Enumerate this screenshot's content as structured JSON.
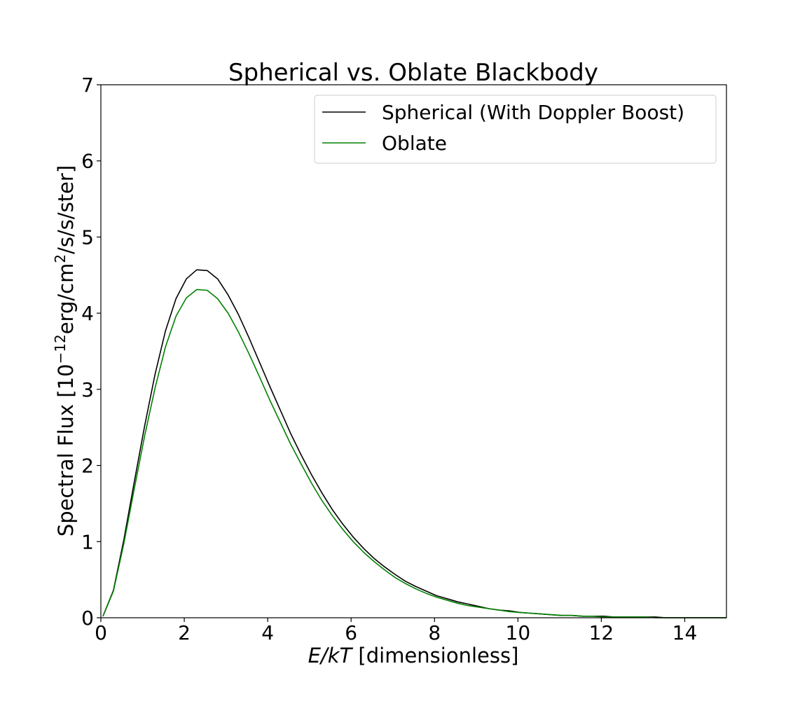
{
  "chart_data": {
    "type": "line",
    "title": "Spherical vs. Oblate Blackbody",
    "xlabel_italic": "E/kT",
    "xlabel_rest": " [dimensionless]",
    "ylabel_pre": "Spectral Flux [10",
    "ylabel_exp1": "−12",
    "ylabel_mid": "erg/cm",
    "ylabel_exp2": "2",
    "ylabel_post": "/s/s/ster]",
    "xlim": [
      0,
      15
    ],
    "ylim": [
      0,
      7
    ],
    "xticks": [
      0,
      2,
      4,
      6,
      8,
      10,
      12,
      14
    ],
    "xtick_labels": [
      "0",
      "2",
      "4",
      "6",
      "8",
      "10",
      "12",
      "14"
    ],
    "yticks": [
      0,
      1,
      2,
      3,
      4,
      5,
      6,
      7
    ],
    "ytick_labels": [
      "0",
      "1",
      "2",
      "3",
      "4",
      "5",
      "6",
      "7"
    ],
    "grid": false,
    "legend_position": "top-right",
    "x": [
      0.05,
      0.3,
      0.55,
      0.8,
      1.05,
      1.3,
      1.55,
      1.8,
      2.05,
      2.3,
      2.55,
      2.8,
      3.05,
      3.3,
      3.55,
      3.8,
      4.05,
      4.3,
      4.55,
      4.8,
      5.05,
      5.3,
      5.55,
      5.8,
      6.05,
      6.3,
      6.55,
      6.8,
      7.05,
      7.3,
      7.55,
      7.8,
      8.05,
      8.3,
      8.55,
      8.8,
      9.05,
      9.3,
      9.55,
      9.8,
      10.05,
      10.3,
      10.55,
      10.8,
      11.05,
      11.3,
      11.55,
      11.8,
      12.05,
      12.3,
      12.55,
      12.8,
      13.05,
      13.3,
      13.55,
      13.8,
      14.05,
      14.3,
      14.55,
      14.8,
      15.0
    ],
    "series": [
      {
        "name": "Spherical (With Doppler Boost)",
        "color": "#000000",
        "values": [
          0.02,
          0.36,
          1.02,
          1.78,
          2.52,
          3.2,
          3.77,
          4.19,
          4.45,
          4.57,
          4.56,
          4.45,
          4.24,
          3.98,
          3.68,
          3.36,
          3.04,
          2.73,
          2.42,
          2.14,
          1.88,
          1.64,
          1.42,
          1.23,
          1.06,
          0.91,
          0.78,
          0.67,
          0.57,
          0.48,
          0.41,
          0.35,
          0.29,
          0.25,
          0.21,
          0.18,
          0.15,
          0.12,
          0.1,
          0.09,
          0.07,
          0.06,
          0.05,
          0.04,
          0.03,
          0.03,
          0.02,
          0.02,
          0.02,
          0.01,
          0.01,
          0.01,
          0.01,
          0.01,
          0.0,
          0.0,
          0.0,
          0.0,
          0.0,
          0.0,
          0.0
        ]
      },
      {
        "name": "Oblate",
        "color": "#008000",
        "values": [
          0.02,
          0.35,
          0.97,
          1.69,
          2.39,
          3.02,
          3.56,
          3.96,
          4.2,
          4.31,
          4.3,
          4.19,
          4.0,
          3.75,
          3.47,
          3.17,
          2.86,
          2.57,
          2.28,
          2.02,
          1.77,
          1.54,
          1.34,
          1.16,
          1.0,
          0.86,
          0.74,
          0.63,
          0.53,
          0.45,
          0.38,
          0.32,
          0.27,
          0.23,
          0.19,
          0.16,
          0.14,
          0.12,
          0.1,
          0.08,
          0.07,
          0.06,
          0.05,
          0.04,
          0.03,
          0.03,
          0.02,
          0.02,
          0.01,
          0.01,
          0.01,
          0.01,
          0.01,
          0.0,
          0.0,
          0.0,
          0.0,
          0.0,
          0.0,
          0.0,
          0.0
        ]
      }
    ]
  }
}
